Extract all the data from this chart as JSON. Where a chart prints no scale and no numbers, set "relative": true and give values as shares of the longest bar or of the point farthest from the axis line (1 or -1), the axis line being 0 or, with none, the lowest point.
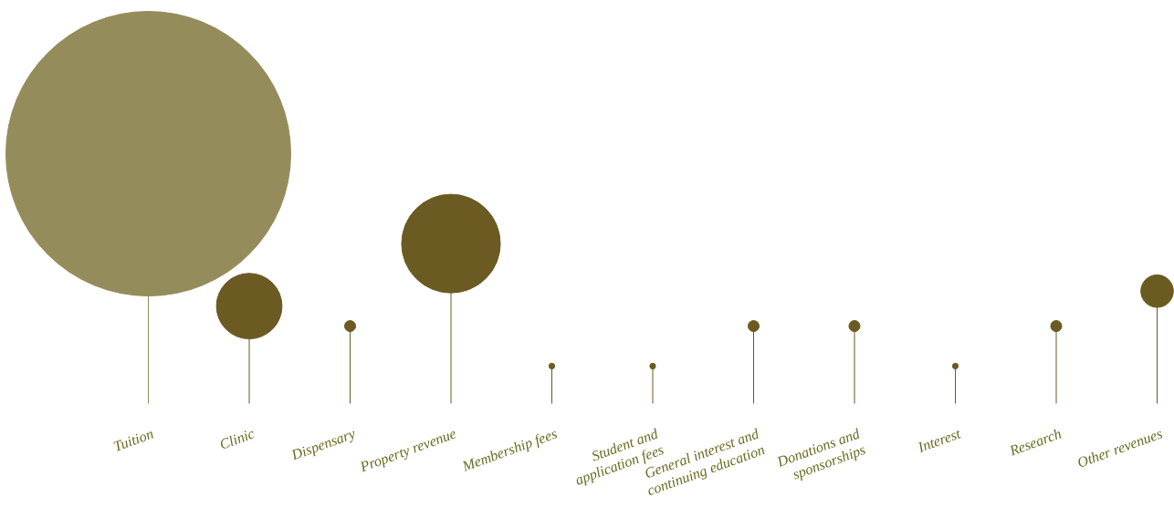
{
  "chart_data": {
    "type": "bubble",
    "relative": true,
    "categories": [
      "Tuition",
      "Clinic",
      "Dispensary",
      "Property revenue",
      "Membership fees",
      "Student and application fees",
      "General interest and continuing education",
      "Donations and sponsorships",
      "Interest",
      "Research",
      "Other revenues"
    ],
    "values": [
      1,
      0.39,
      0.31,
      0.64,
      0.15,
      0.15,
      0.31,
      0.31,
      0.15,
      0.31,
      0.45
    ],
    "sizes": [
      1,
      0.053,
      0.0015,
      0.12,
      0.0004,
      0.0004,
      0.0015,
      0.0015,
      0.0004,
      0.0015,
      0.013
    ],
    "colors": [
      "#958c5c",
      "#6b5a22",
      "#6b5a22",
      "#6b5a22",
      "#6b5a22",
      "#6b5a22",
      "#6b5a22",
      "#6b5a22",
      "#6b5a22",
      "#6b5a22",
      "#6b5a22"
    ]
  }
}
